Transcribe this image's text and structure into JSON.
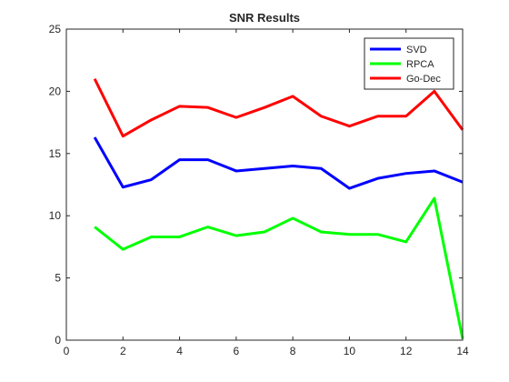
{
  "chart_data": {
    "type": "line",
    "title": "SNR Results",
    "xlabel": "",
    "ylabel": "",
    "xlim": [
      0,
      14
    ],
    "ylim": [
      0,
      25
    ],
    "xticks": [
      0,
      2,
      4,
      6,
      8,
      10,
      12,
      14
    ],
    "yticks": [
      0,
      5,
      10,
      15,
      20,
      25
    ],
    "grid": false,
    "legend_position": "top-right",
    "x": [
      1,
      2,
      3,
      4,
      5,
      6,
      7,
      8,
      9,
      10,
      11,
      12,
      13,
      14
    ],
    "series": [
      {
        "name": "SVD",
        "color": "#0000ff",
        "values": [
          16.3,
          12.3,
          12.9,
          14.5,
          14.5,
          13.6,
          13.8,
          14.0,
          13.8,
          12.2,
          13.0,
          13.4,
          13.6,
          12.7
        ]
      },
      {
        "name": "RPCA",
        "color": "#00ff00",
        "values": [
          9.1,
          7.3,
          8.3,
          8.3,
          9.1,
          8.4,
          8.7,
          9.8,
          8.7,
          8.5,
          8.5,
          7.9,
          11.4,
          0.1
        ]
      },
      {
        "name": "Go-Dec",
        "color": "#ff0000",
        "values": [
          21.0,
          16.4,
          17.7,
          18.8,
          18.7,
          17.9,
          18.7,
          19.6,
          18.0,
          17.2,
          18.0,
          18.0,
          20.0,
          16.9
        ]
      }
    ]
  }
}
